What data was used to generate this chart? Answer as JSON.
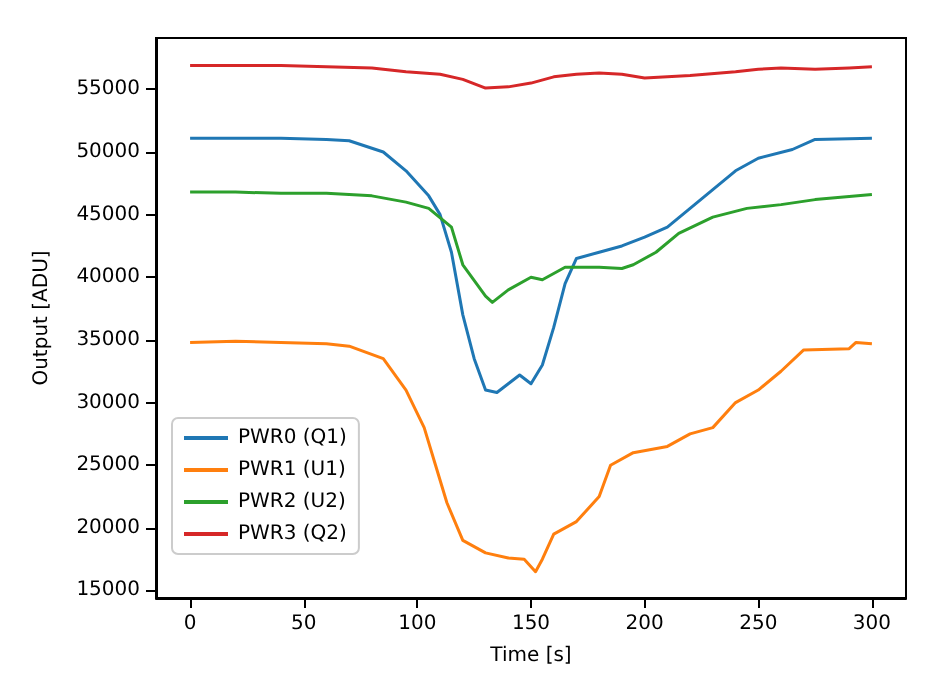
{
  "chart_data": {
    "type": "line",
    "xlabel": "Time [s]",
    "ylabel": "Output [ADU]",
    "xlim": [
      -15,
      315
    ],
    "ylim": [
      14400,
      59100
    ],
    "xticks": [
      0,
      50,
      100,
      150,
      200,
      250,
      300
    ],
    "yticks": [
      15000,
      20000,
      25000,
      30000,
      35000,
      40000,
      45000,
      50000,
      55000
    ],
    "grid": false,
    "legend": "bottom left",
    "marker": "none",
    "line_style": "solid",
    "series": [
      {
        "name": "PWR0 (Q1)",
        "color": "#1f77b4",
        "x": [
          0,
          20,
          40,
          60,
          70,
          85,
          95,
          105,
          110,
          115,
          120,
          125,
          130,
          135,
          140,
          145,
          150,
          155,
          160,
          165,
          170,
          180,
          190,
          200,
          210,
          220,
          230,
          240,
          250,
          265,
          275,
          300
        ],
        "values": [
          51100,
          51100,
          51100,
          51000,
          50900,
          50000,
          48500,
          46500,
          45000,
          42000,
          37000,
          33500,
          31000,
          30800,
          31500,
          32200,
          31500,
          33000,
          36000,
          39500,
          41500,
          42000,
          42500,
          43200,
          44000,
          45500,
          47000,
          48500,
          49500,
          50200,
          51000,
          51100
        ]
      },
      {
        "name": "PWR1 (U1)",
        "color": "#ff7f0e",
        "x": [
          0,
          20,
          40,
          60,
          70,
          85,
          95,
          103,
          108,
          113,
          120,
          130,
          140,
          147,
          152,
          155,
          160,
          170,
          180,
          185,
          195,
          210,
          220,
          230,
          240,
          250,
          260,
          270,
          290,
          293,
          300
        ],
        "values": [
          34800,
          34900,
          34800,
          34700,
          34500,
          33500,
          31000,
          28000,
          25000,
          22000,
          19000,
          18000,
          17600,
          17500,
          16500,
          17500,
          19500,
          20500,
          22500,
          25000,
          26000,
          26500,
          27500,
          28000,
          30000,
          31000,
          32500,
          34200,
          34300,
          34800,
          34700
        ]
      },
      {
        "name": "PWR2 (U2)",
        "color": "#2ca02c",
        "x": [
          0,
          20,
          40,
          60,
          80,
          95,
          105,
          115,
          120,
          130,
          133,
          140,
          150,
          155,
          165,
          180,
          190,
          195,
          205,
          215,
          230,
          245,
          260,
          275,
          300
        ],
        "values": [
          46800,
          46800,
          46700,
          46700,
          46500,
          46000,
          45500,
          44000,
          41000,
          38500,
          38000,
          39000,
          40000,
          39800,
          40800,
          40800,
          40700,
          41000,
          42000,
          43500,
          44800,
          45500,
          45800,
          46200,
          46600
        ]
      },
      {
        "name": "PWR3 (Q2)",
        "color": "#d62728",
        "x": [
          0,
          20,
          40,
          60,
          80,
          95,
          110,
          120,
          130,
          140,
          150,
          160,
          170,
          180,
          190,
          200,
          210,
          220,
          240,
          250,
          260,
          275,
          290,
          300
        ],
        "values": [
          56900,
          56900,
          56900,
          56800,
          56700,
          56400,
          56200,
          55800,
          55100,
          55200,
          55500,
          56000,
          56200,
          56300,
          56200,
          55900,
          56000,
          56100,
          56400,
          56600,
          56700,
          56600,
          56700,
          56800
        ]
      }
    ]
  }
}
